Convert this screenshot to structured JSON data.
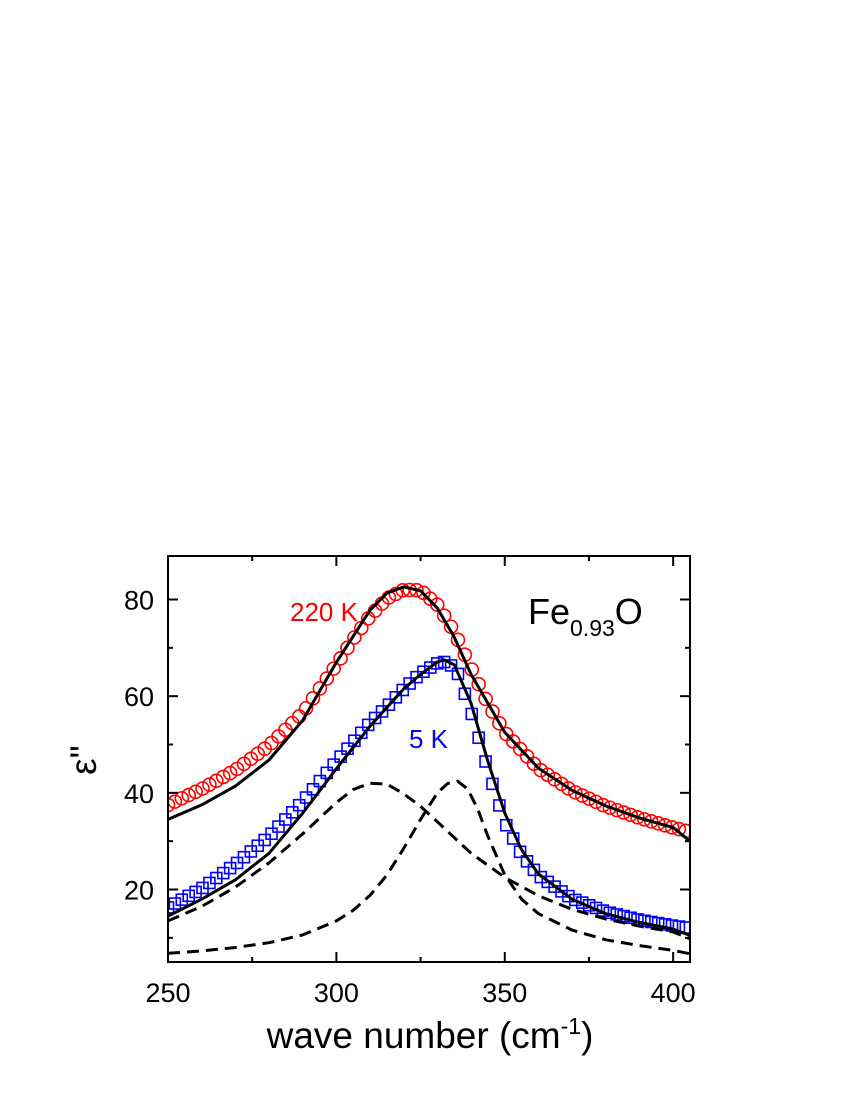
{
  "chart_data": {
    "type": "scatter",
    "title": "",
    "xlabel": "wave number (cm",
    "xlabel_sup": "-1",
    "xlabel_close": ")",
    "ylabel": "ε\"",
    "xlim": [
      250,
      405
    ],
    "ylim": [
      5,
      89
    ],
    "xticks": [
      250,
      300,
      350,
      400
    ],
    "yticks": [
      20,
      40,
      60,
      80
    ],
    "x_tick_labels": [
      "250",
      "300",
      "350",
      "400"
    ],
    "y_tick_labels": [
      "20",
      "40",
      "60",
      "80"
    ],
    "grid": false,
    "legend": "none",
    "annotations": {
      "formula_main": "Fe",
      "formula_sub": "0.93",
      "formula_end": "O",
      "label_220K": "220 K",
      "label_5K": "5 K"
    },
    "series": [
      {
        "marker": "circle",
        "color": "#ff0000",
        "x": [
          250,
          260,
          270,
          280,
          290,
          300,
          305,
          310,
          315,
          320,
          325,
          330,
          335,
          340,
          345,
          350,
          360,
          370,
          380,
          390,
          400,
          404
        ],
        "y": [
          37.5,
          40.8,
          44.7,
          49.8,
          56.5,
          66.5,
          71.8,
          76.6,
          80.2,
          82.0,
          81.9,
          78.9,
          73.3,
          65.8,
          58.4,
          52.5,
          45.0,
          40.4,
          37.2,
          34.8,
          32.8,
          32.1
        ]
      },
      {
        "marker": "square",
        "color": "#0000ff",
        "x": [
          250,
          260,
          270,
          280,
          290,
          300,
          310,
          315,
          320,
          325,
          330,
          333,
          336,
          340,
          345,
          350,
          355,
          360,
          370,
          380,
          390,
          400,
          404
        ],
        "y": [
          16.3,
          20.2,
          25.2,
          31.0,
          38.2,
          46.5,
          54.5,
          57.8,
          61.5,
          64.7,
          66.8,
          67.2,
          64.8,
          56.8,
          44.8,
          33.9,
          27.2,
          22.9,
          18.1,
          15.4,
          13.7,
          12.5,
          12.1
        ]
      },
      {
        "line": "solid",
        "color": "#000000",
        "x": [
          250,
          260,
          270,
          280,
          290,
          300,
          310,
          315,
          320,
          325,
          330,
          335,
          340,
          350,
          360,
          370,
          380,
          390,
          400,
          405
        ],
        "y": [
          34.5,
          37.5,
          41.4,
          46.8,
          55.0,
          67.0,
          77.8,
          81.3,
          82.6,
          81.8,
          78.2,
          72.2,
          64.5,
          52.5,
          45.1,
          40.5,
          37.3,
          34.8,
          32.8,
          30.0
        ]
      },
      {
        "line": "solid",
        "color": "#000000",
        "x": [
          250,
          260,
          270,
          280,
          290,
          300,
          310,
          320,
          325,
          330,
          332,
          335,
          340,
          345,
          350,
          355,
          360,
          370,
          380,
          390,
          400,
          405
        ],
        "y": [
          14.5,
          18.0,
          22.0,
          27.5,
          35.8,
          45.0,
          53.8,
          61.5,
          64.5,
          67.1,
          67.5,
          66.5,
          58.5,
          46.5,
          35.8,
          28.2,
          23.2,
          18.0,
          15.0,
          13.2,
          11.8,
          10.5
        ]
      },
      {
        "line": "dashed",
        "color": "#000000",
        "x": [
          250,
          260,
          270,
          280,
          290,
          300,
          305,
          310,
          315,
          320,
          325,
          330,
          340,
          350,
          360,
          370,
          380,
          390,
          400,
          405
        ],
        "y": [
          13.5,
          16.5,
          20.5,
          25.5,
          31.5,
          38.0,
          40.7,
          42.0,
          41.8,
          39.8,
          37.2,
          34.0,
          27.5,
          22.5,
          18.7,
          15.9,
          13.9,
          12.4,
          11.2,
          9.8
        ]
      },
      {
        "line": "dashed",
        "color": "#000000",
        "x": [
          250,
          260,
          270,
          280,
          290,
          300,
          305,
          310,
          315,
          320,
          325,
          330,
          333,
          336,
          339,
          342,
          345,
          350,
          355,
          360,
          370,
          380,
          390,
          400,
          405
        ],
        "y": [
          6.8,
          7.3,
          8.0,
          9.0,
          10.6,
          13.5,
          15.7,
          18.8,
          23.0,
          28.5,
          34.5,
          40.0,
          41.9,
          42.4,
          40.8,
          36.6,
          31.0,
          23.0,
          18.0,
          15.0,
          11.6,
          9.6,
          8.4,
          7.4,
          6.7
        ]
      }
    ]
  }
}
